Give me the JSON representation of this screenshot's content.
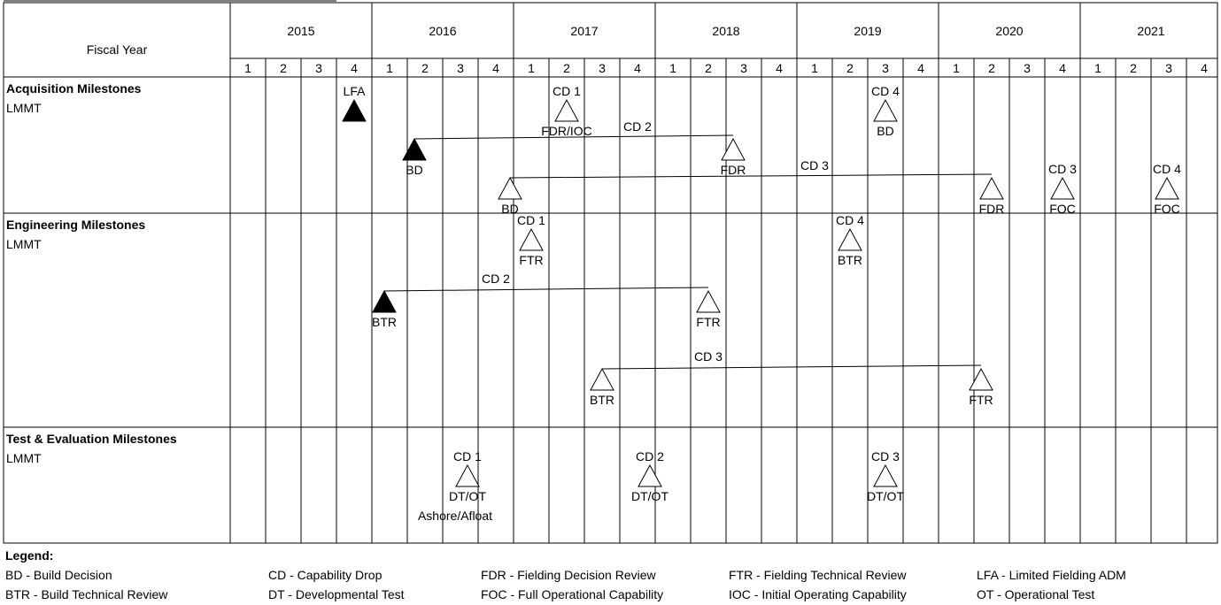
{
  "header": {
    "fiscal_year_label": "Fiscal Year",
    "years": [
      "2015",
      "2016",
      "2017",
      "2018",
      "2019",
      "2020",
      "2021"
    ],
    "quarters": [
      "1",
      "2",
      "3",
      "4"
    ]
  },
  "sections": [
    {
      "title": "Acquisition Milestones",
      "subtitle": "LMMT",
      "milestones": [
        {
          "q": 3.5,
          "lane": 0,
          "filled": true,
          "above": "LFA",
          "below": ""
        },
        {
          "q": 9.5,
          "lane": 0,
          "filled": false,
          "above": "CD 1",
          "below": "FDR/IOC"
        },
        {
          "q": 18.5,
          "lane": 0,
          "filled": false,
          "above": "CD 4",
          "below": "BD"
        },
        {
          "q": 5.2,
          "lane": 1,
          "filled": true,
          "above": "",
          "below": "BD"
        },
        {
          "q": 14.2,
          "lane": 1,
          "filled": false,
          "above": "",
          "below": "FDR"
        },
        {
          "q": 7.9,
          "lane": 2,
          "filled": false,
          "above": "",
          "below": "BD"
        },
        {
          "q": 21.5,
          "lane": 2,
          "filled": false,
          "above": "",
          "below": "FDR"
        },
        {
          "q": 23.5,
          "lane": 2,
          "filled": false,
          "above": "CD 3",
          "below": "FOC"
        },
        {
          "q": 26.45,
          "lane": 2,
          "filled": false,
          "above": "CD 4",
          "below": "FOC"
        }
      ],
      "connectors": [
        {
          "from": 5.2,
          "to": 14.2,
          "lane": 1,
          "label": "CD 2",
          "label_q": 11.5
        },
        {
          "from": 7.9,
          "to": 21.5,
          "lane": 2,
          "label": "CD 3",
          "label_q": 16.5
        }
      ]
    },
    {
      "title": "Engineering Milestones",
      "subtitle": "LMMT",
      "milestones": [
        {
          "q": 8.5,
          "lane": 0,
          "filled": false,
          "above": "CD 1",
          "below": "FTR"
        },
        {
          "q": 17.5,
          "lane": 0,
          "filled": false,
          "above": "CD 4",
          "below": "BTR"
        },
        {
          "q": 4.35,
          "lane": 1,
          "filled": true,
          "above": "",
          "below": "BTR"
        },
        {
          "q": 13.5,
          "lane": 1,
          "filled": false,
          "above": "",
          "below": "FTR"
        },
        {
          "q": 10.5,
          "lane": 2,
          "filled": false,
          "above": "",
          "below": "BTR"
        },
        {
          "q": 21.2,
          "lane": 2,
          "filled": false,
          "above": "",
          "below": "FTR"
        }
      ],
      "connectors": [
        {
          "from": 4.35,
          "to": 13.5,
          "lane": 1,
          "label": "CD 2",
          "label_q": 7.5
        },
        {
          "from": 10.5,
          "to": 21.2,
          "lane": 2,
          "label": "CD 3",
          "label_q": 13.5
        }
      ]
    },
    {
      "title": "Test & Evaluation Milestones",
      "subtitle": "LMMT",
      "milestones": [
        {
          "q": 6.7,
          "lane": 0,
          "filled": false,
          "above": "CD 1",
          "below": "DT/OT",
          "extra": "Ashore/Afloat"
        },
        {
          "q": 11.85,
          "lane": 0,
          "filled": false,
          "above": "CD 2",
          "below": "DT/OT"
        },
        {
          "q": 18.5,
          "lane": 0,
          "filled": false,
          "above": "CD 3",
          "below": "DT/OT"
        }
      ],
      "connectors": []
    }
  ],
  "legend": {
    "title": "Legend:",
    "items": [
      "BD - Build Decision",
      "CD - Capability Drop",
      "FDR -  Fielding Decision Review",
      "FTR - Fielding Technical Review",
      "LFA - Limited  Fielding ADM",
      "BTR - Build Technical Review",
      "DT - Developmental Test",
      "FOC - Full Operational Capability",
      "IOC - Initial Operating Capability",
      "OT - Operational Test"
    ]
  }
}
